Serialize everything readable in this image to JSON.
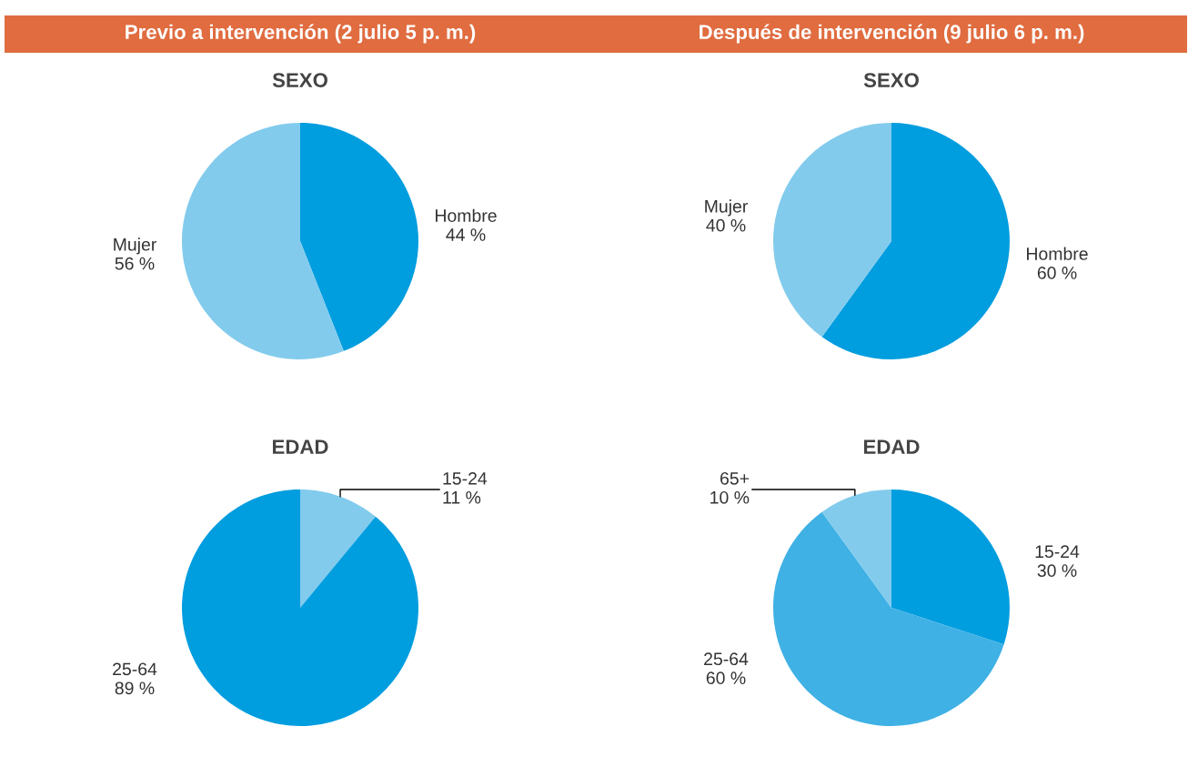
{
  "chart_data": [
    {
      "type": "pie",
      "title": "SEXO",
      "annotations": [
        "Previo a intervención (2 julio 5 p. m.)"
      ],
      "categories": [
        "Hombre",
        "Mujer"
      ],
      "values": [
        44,
        56
      ],
      "value_labels": [
        "44 %",
        "56 %"
      ],
      "colors": [
        "#009ddf",
        "#82cbed"
      ],
      "legend": false
    },
    {
      "type": "pie",
      "title": "SEXO",
      "annotations": [
        "Después de intervención (9 julio 6 p. m.)"
      ],
      "categories": [
        "Hombre",
        "Mujer"
      ],
      "values": [
        60,
        40
      ],
      "value_labels": [
        "60 %",
        "40 %"
      ],
      "colors": [
        "#009ddf",
        "#82cbed"
      ],
      "legend": false
    },
    {
      "type": "pie",
      "title": "EDAD",
      "categories": [
        "15-24",
        "25-64"
      ],
      "values": [
        11,
        89
      ],
      "value_labels": [
        "11 %",
        "89 %"
      ],
      "colors": [
        "#82cbed",
        "#009ddf"
      ],
      "legend": false
    },
    {
      "type": "pie",
      "title": "EDAD",
      "categories": [
        "15-24",
        "25-64",
        "65+"
      ],
      "values": [
        30,
        60,
        10
      ],
      "value_labels": [
        "30 %",
        "60 %",
        "10 %"
      ],
      "colors": [
        "#009ddf",
        "#3fb1e5",
        "#82cbed"
      ],
      "legend": false
    }
  ]
}
